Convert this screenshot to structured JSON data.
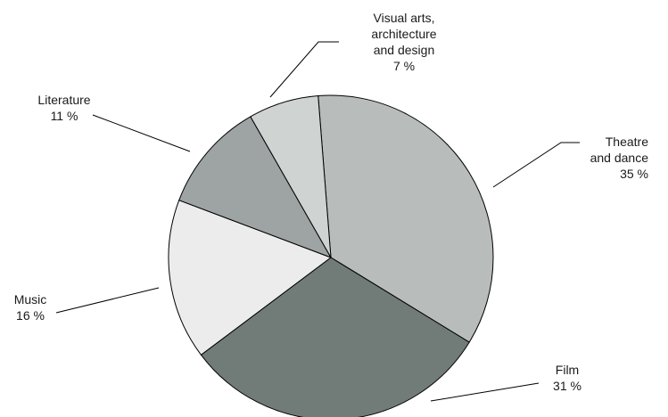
{
  "chart_data": {
    "type": "pie",
    "title": "",
    "start_angle_deg": -4.5,
    "direction": "clockwise",
    "slices": [
      {
        "label_lines": [
          "Theatre",
          "and dance"
        ],
        "value_label": "35 %",
        "value": 35,
        "color": "#b8bcbb"
      },
      {
        "label_lines": [
          "Film"
        ],
        "value_label": "31 %",
        "value": 31,
        "color": "#717b78"
      },
      {
        "label_lines": [
          "Music"
        ],
        "value_label": "16 %",
        "value": 16,
        "color": "#ececed"
      },
      {
        "label_lines": [
          "Literature"
        ],
        "value_label": "11 %",
        "value": 11,
        "color": "#9ea3a3"
      },
      {
        "label_lines": [
          "Visual arts,",
          "architecture",
          "and design"
        ],
        "value_label": "7 %",
        "value": 7,
        "color": "#cfd3d2"
      }
    ]
  }
}
